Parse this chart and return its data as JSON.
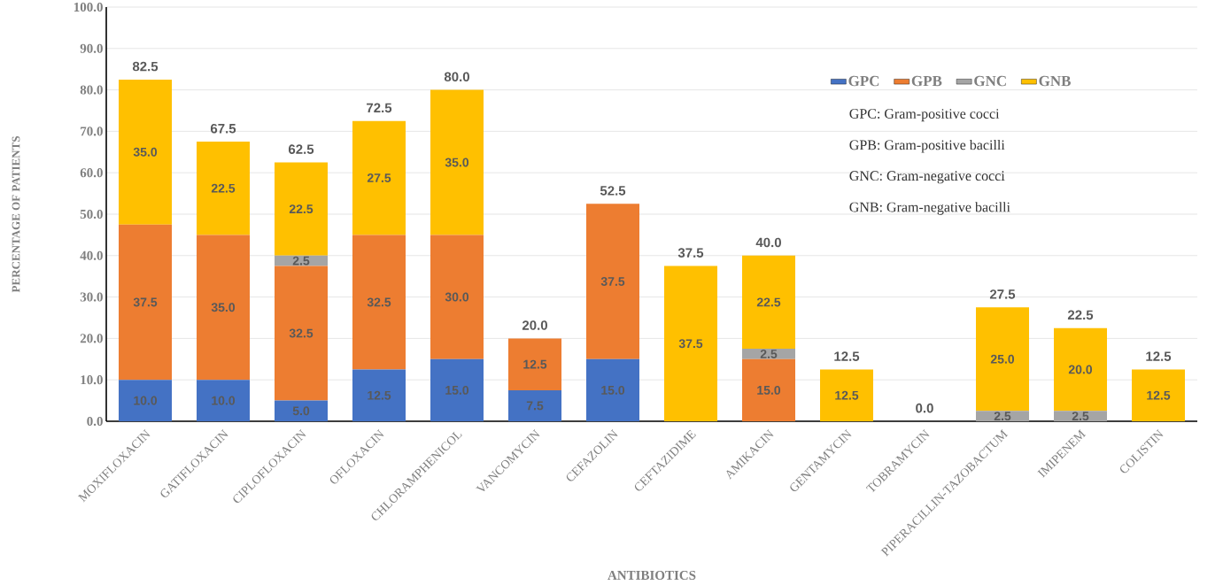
{
  "chart_data": {
    "type": "bar",
    "stacked": true,
    "xlabel": "ANTIBIOTICS",
    "ylabel": "PERCENTAGE OF PATIENTS",
    "categories": [
      "MOXIFLOXACIN",
      "GATIFLOXACIN",
      "CIPLOFLOXACIN",
      "OFLOXACIN",
      "CHLORAMPHENICOL",
      "VANCOMYCIN",
      "CEFAZOLIN",
      "CEFTAZIDIME",
      "AMIKACIN",
      "GENTAMYCIN",
      "TOBRAMYCIN",
      "PIPERACILLIN-TAZOBACTUM",
      "IMIPENEM",
      "COLISTIN"
    ],
    "series": [
      {
        "name": "GPC",
        "color": "#4472c4",
        "values": [
          10.0,
          10.0,
          5.0,
          12.5,
          15.0,
          7.5,
          15.0,
          0,
          0,
          0,
          0,
          0,
          0,
          0
        ],
        "value_labels": [
          "10.0",
          "10.0",
          "5.0",
          "12.5",
          "15.0",
          "7.5",
          "15.0",
          null,
          null,
          null,
          null,
          null,
          null,
          null
        ]
      },
      {
        "name": "GPB",
        "color": "#ed7d31",
        "values": [
          37.5,
          35.0,
          32.5,
          32.5,
          30.0,
          12.5,
          37.5,
          0,
          15.0,
          0,
          0,
          0,
          0,
          0
        ],
        "value_labels": [
          "37.5",
          "35.0",
          "32.5",
          "32.5",
          "30.0",
          "12.5",
          "37.5",
          null,
          "15.0",
          null,
          null,
          null,
          null,
          null
        ]
      },
      {
        "name": "GNC",
        "color": "#a5a5a5",
        "values": [
          0,
          0,
          2.5,
          0,
          0,
          0,
          0,
          0,
          2.5,
          0,
          0,
          2.5,
          2.5,
          0
        ],
        "value_labels": [
          null,
          null,
          "2.5",
          null,
          null,
          null,
          null,
          null,
          "2.5",
          null,
          null,
          "2.5",
          "2.5",
          null
        ]
      },
      {
        "name": "GNB",
        "color": "#ffc000",
        "values": [
          35.0,
          22.5,
          22.5,
          27.5,
          35.0,
          0,
          0,
          37.5,
          22.5,
          12.5,
          0,
          25.0,
          20.0,
          12.5
        ],
        "value_labels": [
          "35.0",
          "22.5",
          "22.5",
          "27.5",
          "35.0",
          null,
          null,
          "37.5",
          "22.5",
          "12.5",
          null,
          "25.0",
          "20.0",
          "12.5"
        ]
      }
    ],
    "totals": [
      "82.5",
      "67.5",
      "62.5",
      "72.5",
      "80.0",
      "20.0",
      "52.5",
      "37.5",
      "40.0",
      "12.5",
      "0.0",
      "27.5",
      "22.5",
      "12.5"
    ],
    "ylim": [
      0,
      100
    ],
    "yticks": [
      {
        "value": 0,
        "label": "0.0"
      },
      {
        "value": 10,
        "label": "10.0"
      },
      {
        "value": 20,
        "label": "20.0"
      },
      {
        "value": 30,
        "label": "30.0"
      },
      {
        "value": 40,
        "label": "40.0"
      },
      {
        "value": 50,
        "label": "50.0"
      },
      {
        "value": 60,
        "label": "60.0"
      },
      {
        "value": 70,
        "label": "70.0"
      },
      {
        "value": 80,
        "label": "80.0"
      },
      {
        "value": 90,
        "label": "90.0"
      },
      {
        "value": 100,
        "label": "100.0"
      }
    ],
    "grid": "y",
    "legend": "top right",
    "annotations": [
      "GPC: Gram-positive cocci",
      "GPB: Gram-positive bacilli",
      "GNC: Gram-negative cocci",
      "GNB: Gram-negative bacilli"
    ]
  }
}
